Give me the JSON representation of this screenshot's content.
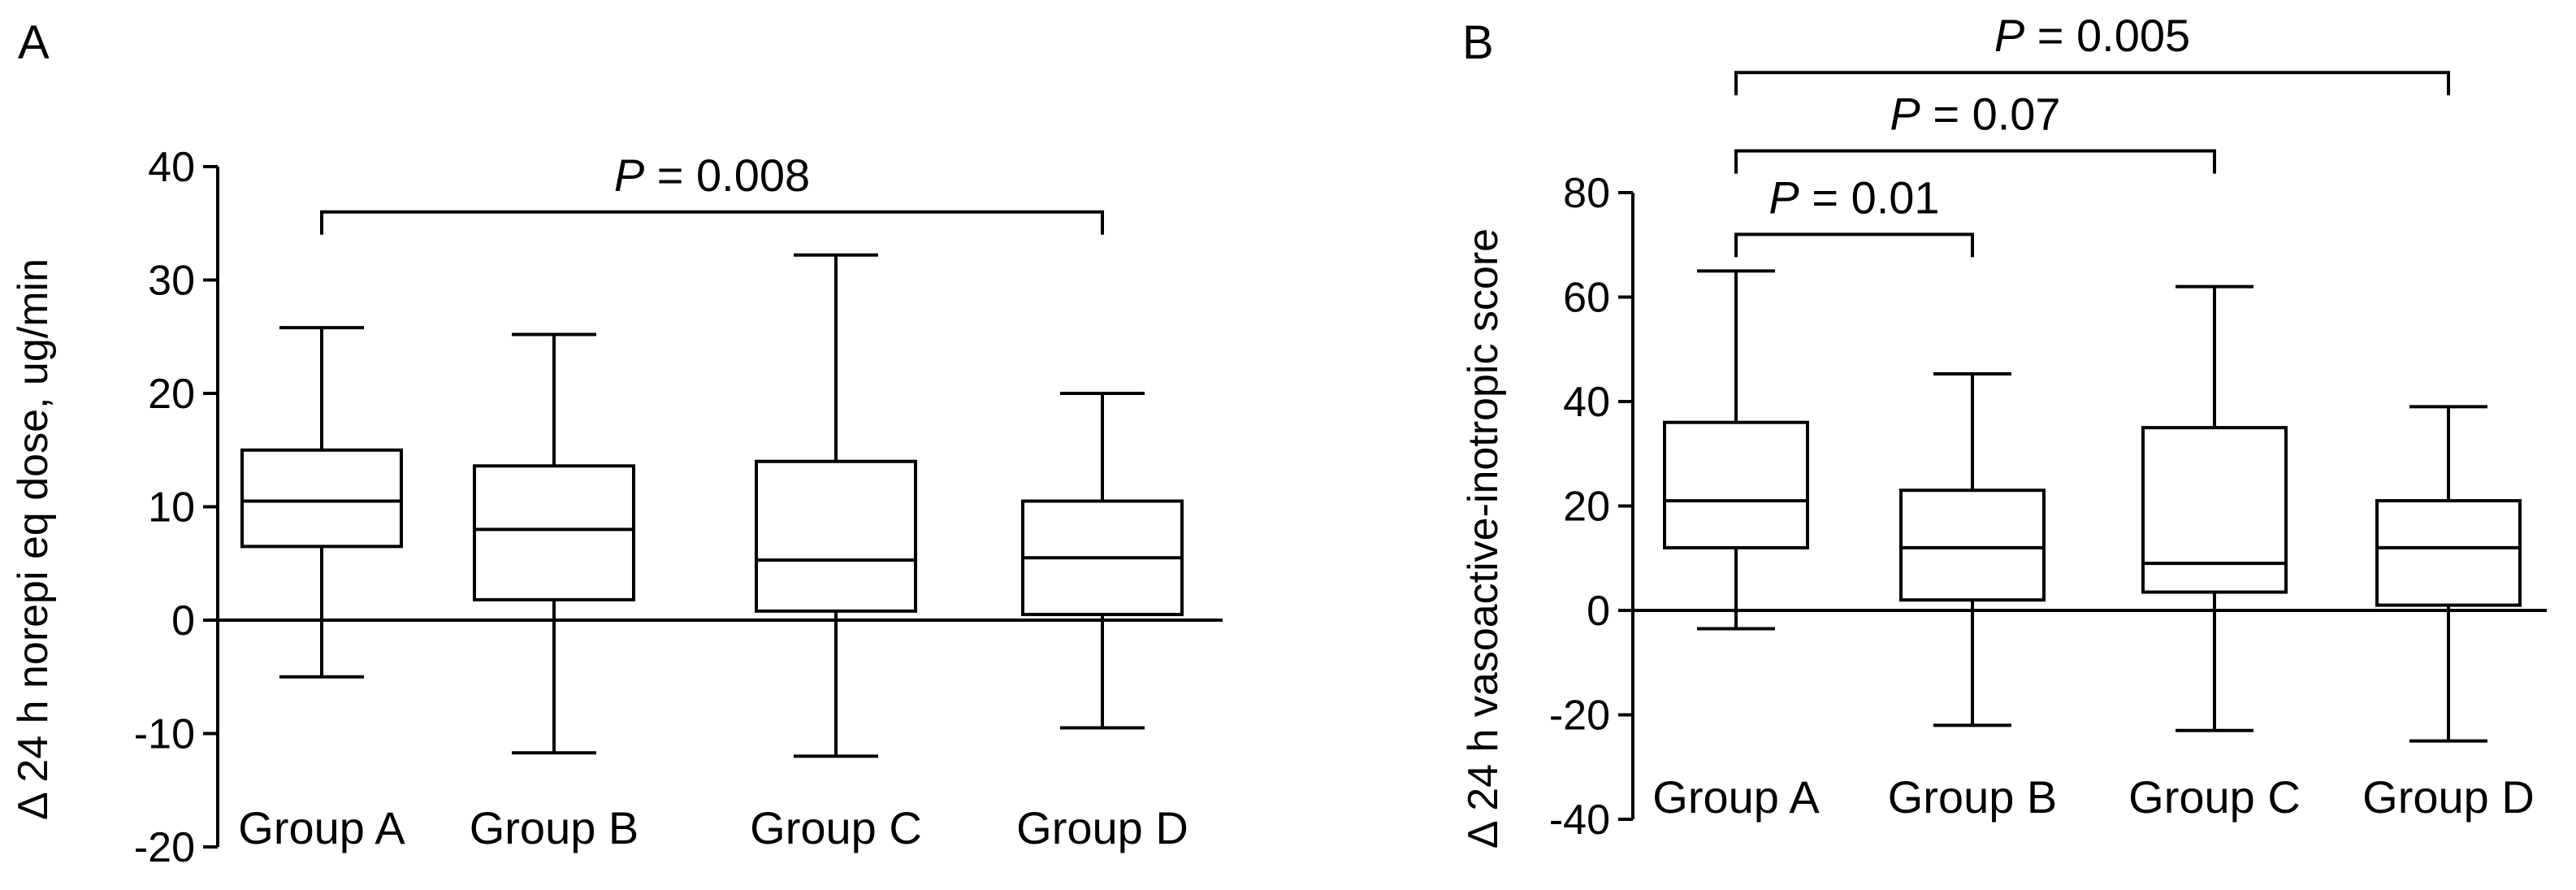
{
  "chart_data": [
    {
      "panel": "A",
      "type": "box",
      "ylabel": "Δ 24 h norepi eq dose, ug/min",
      "xlabel": "",
      "ylim": [
        -20,
        40
      ],
      "yticks": [
        -20,
        -10,
        0,
        10,
        20,
        30,
        40
      ],
      "ytick_labels": [
        "-20",
        "-10",
        "0",
        "10",
        "20",
        "30",
        "40"
      ],
      "zero_line": true,
      "categories": [
        "Group A",
        "Group B",
        "Group C",
        "Group D"
      ],
      "boxes": [
        {
          "name": "Group A",
          "whisker_low": -5,
          "q1": 6.5,
          "median": 10.5,
          "q3": 15,
          "whisker_high": 25.8
        },
        {
          "name": "Group B",
          "whisker_low": -11.7,
          "q1": 1.8,
          "median": 8,
          "q3": 13.6,
          "whisker_high": 25.2
        },
        {
          "name": "Group C",
          "whisker_low": -12,
          "q1": 0.8,
          "median": 5.3,
          "q3": 14,
          "whisker_high": 32.2
        },
        {
          "name": "Group D",
          "whisker_low": -9.5,
          "q1": 0.5,
          "median": 5.5,
          "q3": 10.5,
          "whisker_high": 20
        }
      ],
      "comparisons": [
        {
          "from": "Group A",
          "to": "Group D",
          "p_symbol": "P",
          "p_text": "= 0.008",
          "bracket_y": 36
        }
      ]
    },
    {
      "panel": "B",
      "type": "box",
      "ylabel": "Δ 24 h vasoactive-inotropic score",
      "xlabel": "",
      "ylim": [
        -40,
        80
      ],
      "yticks": [
        -40,
        -20,
        0,
        20,
        40,
        60,
        80
      ],
      "ytick_labels": [
        "-40",
        "-20",
        "0",
        "20",
        "40",
        "60",
        "80"
      ],
      "zero_line": true,
      "categories": [
        "Group A",
        "Group B",
        "Group C",
        "Group D"
      ],
      "boxes": [
        {
          "name": "Group A",
          "whisker_low": -3.5,
          "q1": 12,
          "median": 21,
          "q3": 36,
          "whisker_high": 65
        },
        {
          "name": "Group B",
          "whisker_low": -22,
          "q1": 2,
          "median": 12,
          "q3": 23,
          "whisker_high": 45.3
        },
        {
          "name": "Group C",
          "whisker_low": -23,
          "q1": 3.5,
          "median": 9,
          "q3": 35,
          "whisker_high": 62
        },
        {
          "name": "Group D",
          "whisker_low": -25,
          "q1": 1,
          "median": 12,
          "q3": 21,
          "whisker_high": 39
        }
      ],
      "comparisons": [
        {
          "from": "Group A",
          "to": "Group B",
          "p_symbol": "P",
          "p_text": "= 0.01",
          "bracket_y": 72
        },
        {
          "from": "Group A",
          "to": "Group C",
          "p_symbol": "P",
          "p_text": "= 0.07",
          "bracket_y": 88
        },
        {
          "from": "Group A",
          "to": "Group D",
          "p_symbol": "P",
          "p_text": "= 0.005",
          "bracket_y": 103
        }
      ]
    }
  ]
}
